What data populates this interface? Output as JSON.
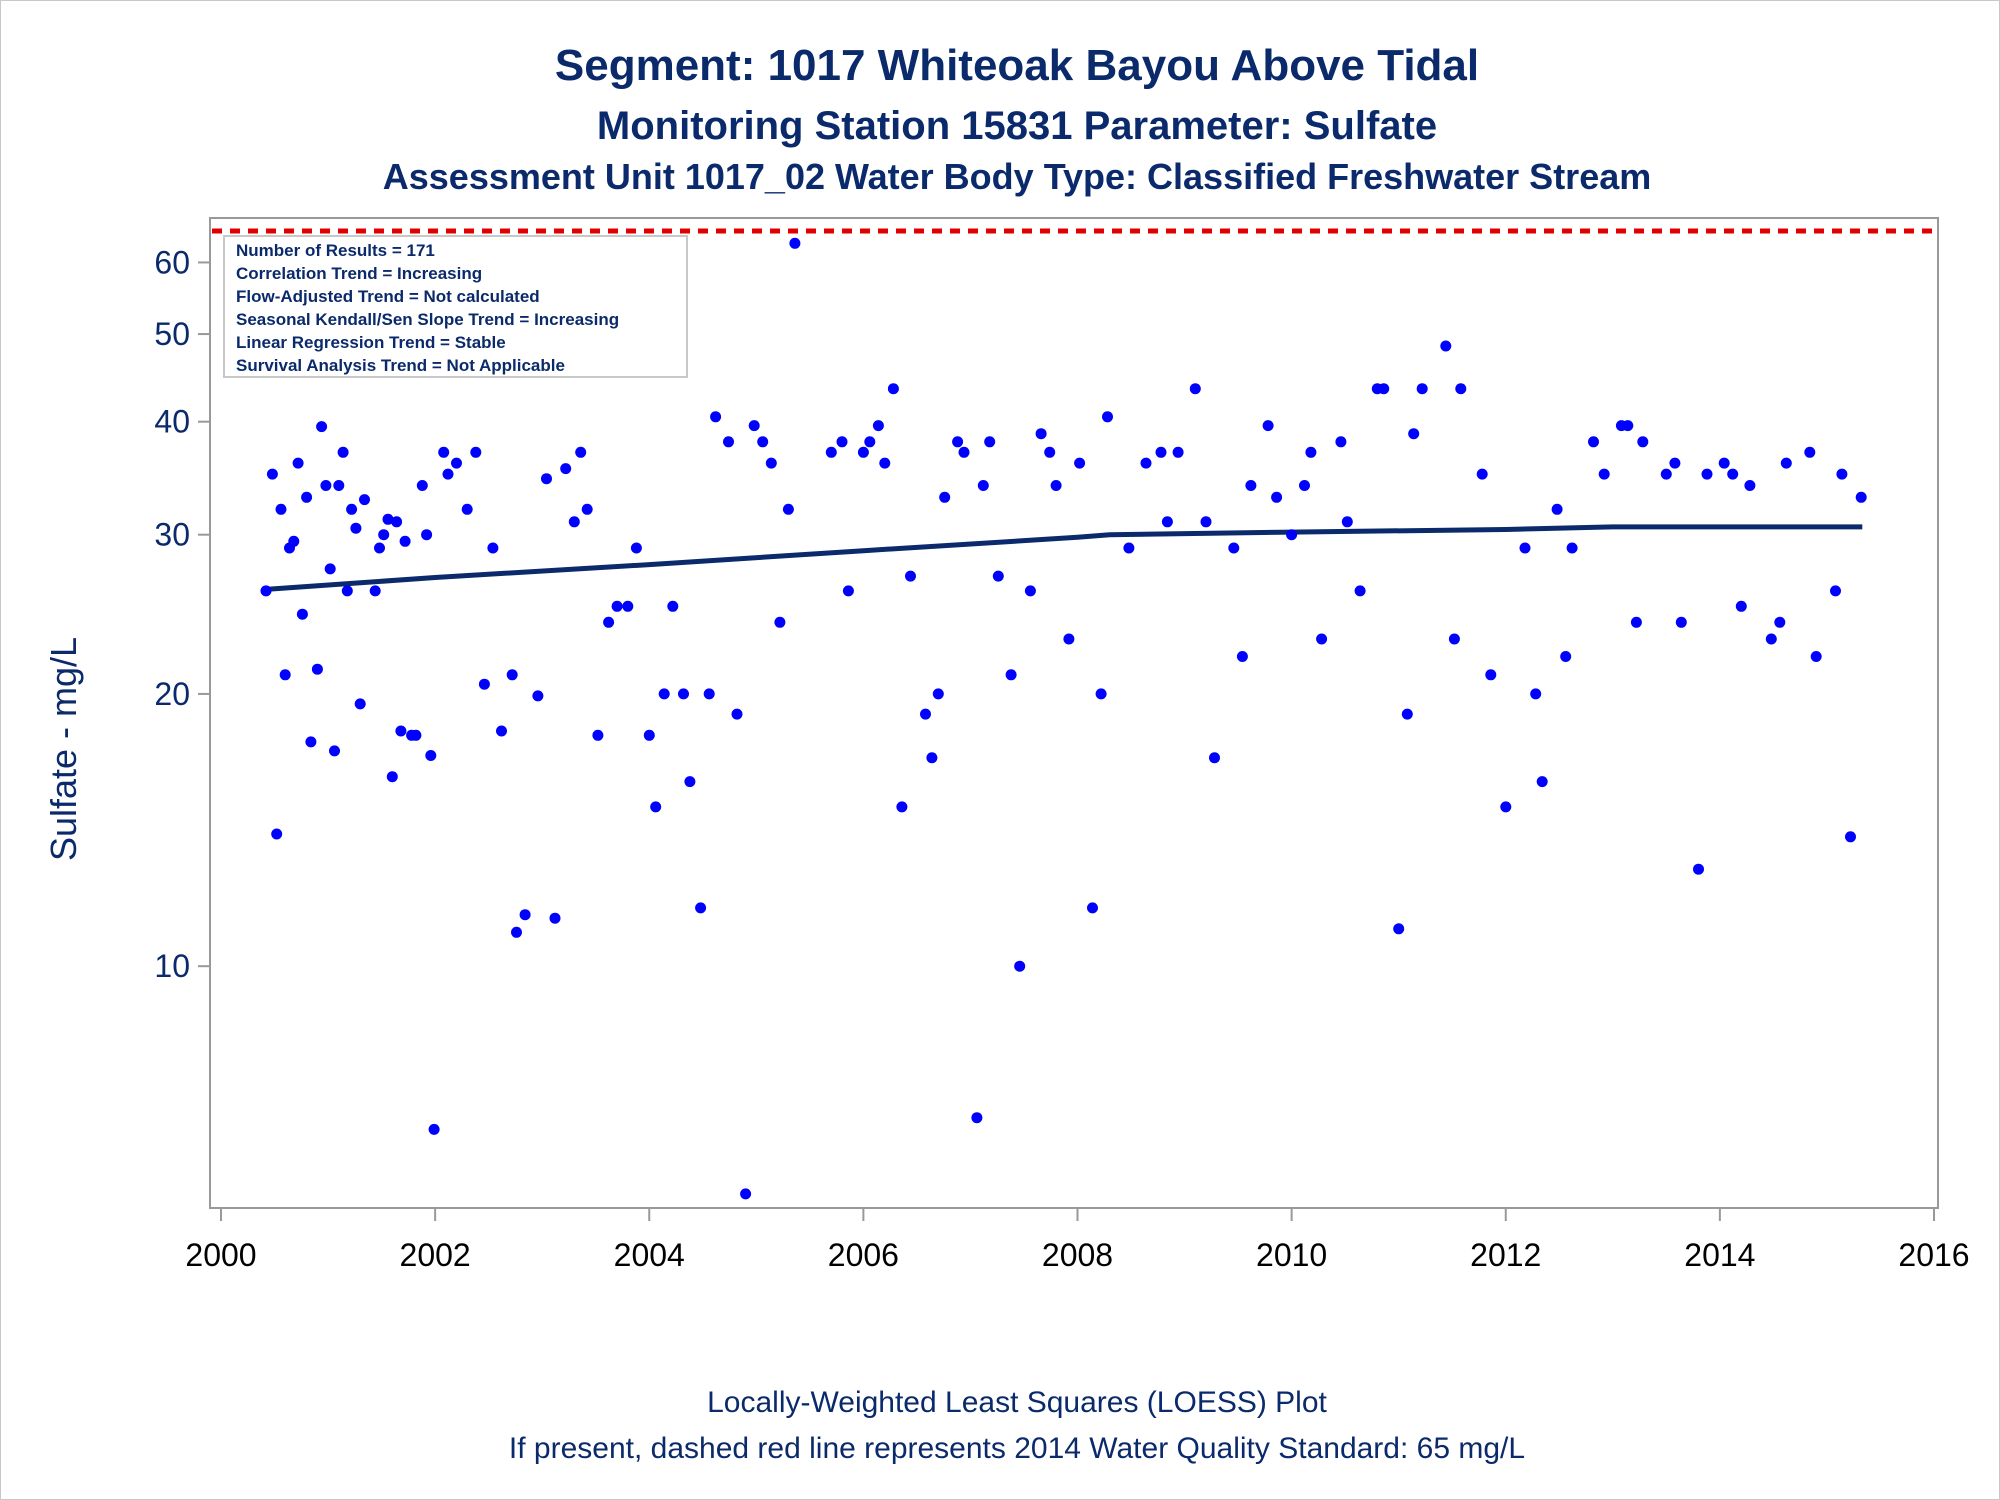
{
  "title": "Segment: 1017  Whiteoak Bayou Above Tidal",
  "subtitle": "Monitoring Station 15831 Parameter: Sulfate",
  "subtitle2": "Assessment Unit 1017_02   Water Body Type: Classified Freshwater Stream",
  "footnote1": "Locally-Weighted Least Squares (LOESS) Plot",
  "footnote2": "If present, dashed red line represents 2014 Water Quality Standard: 65    mg/L",
  "colors": {
    "points": "#0000ff",
    "trend": "#0b2a6b",
    "standard": "#e00000",
    "text": "#0b2a6b",
    "axis": "#999999"
  },
  "chart_data": {
    "type": "scatter",
    "xlabel": "",
    "ylabel": "Sulfate - mg/L",
    "y_scale": "log",
    "xlim": [
      2000,
      2016
    ],
    "ylim": [
      5.5,
      65
    ],
    "x_ticks": [
      "2000",
      "2002",
      "2004",
      "2006",
      "2008",
      "2010",
      "2012",
      "2014",
      "2016"
    ],
    "y_ticks": [
      {
        "value": 10,
        "label": "10"
      },
      {
        "value": 20,
        "label": "20"
      },
      {
        "value": 30,
        "label": "30"
      },
      {
        "value": 40,
        "label": "40"
      },
      {
        "value": 50,
        "label": "50"
      },
      {
        "value": 60,
        "label": "60"
      }
    ],
    "standard": {
      "value": 65,
      "unit": "mg/L",
      "style": "dashed red"
    },
    "inset_lines": [
      "Number of Results = 171",
      "Correlation Trend = Increasing",
      "Flow-Adjusted Trend = Not calculated",
      "Seasonal Kendall/Sen Slope Trend = Increasing",
      "Linear Regression Trend = Stable",
      "Survival Analysis Trend = Not Applicable"
    ],
    "trend_line": {
      "x": [
        2000.42,
        2002,
        2004,
        2006,
        2008,
        2008.3,
        2010,
        2012,
        2013,
        2015.33
      ],
      "y": [
        26.1,
        26.9,
        27.8,
        28.8,
        29.8,
        30.0,
        30.2,
        30.4,
        30.6,
        30.6
      ]
    },
    "points": [
      [
        2000.42,
        26
      ],
      [
        2000.48,
        35
      ],
      [
        2000.52,
        14
      ],
      [
        2000.56,
        32
      ],
      [
        2000.6,
        21
      ],
      [
        2000.64,
        29
      ],
      [
        2000.68,
        29.5
      ],
      [
        2000.72,
        36
      ],
      [
        2000.76,
        24.5
      ],
      [
        2000.8,
        33
      ],
      [
        2000.84,
        17.7
      ],
      [
        2000.9,
        21.3
      ],
      [
        2000.94,
        39.5
      ],
      [
        2000.98,
        34
      ],
      [
        2001.02,
        27.5
      ],
      [
        2001.06,
        17.3
      ],
      [
        2001.1,
        34
      ],
      [
        2001.14,
        37
      ],
      [
        2001.18,
        26
      ],
      [
        2001.22,
        32
      ],
      [
        2001.26,
        30.5
      ],
      [
        2001.3,
        19.5
      ],
      [
        2001.34,
        32.8
      ],
      [
        2001.44,
        26
      ],
      [
        2001.48,
        29
      ],
      [
        2001.52,
        30
      ],
      [
        2001.56,
        31.2
      ],
      [
        2001.6,
        16.2
      ],
      [
        2001.64,
        31
      ],
      [
        2001.68,
        18.2
      ],
      [
        2001.72,
        29.5
      ],
      [
        2001.78,
        18
      ],
      [
        2001.82,
        18
      ],
      [
        2001.88,
        34
      ],
      [
        2001.92,
        30
      ],
      [
        2001.96,
        17.1
      ],
      [
        2001.99,
        6.6
      ],
      [
        2002.08,
        37
      ],
      [
        2002.12,
        35
      ],
      [
        2002.2,
        36
      ],
      [
        2002.3,
        32
      ],
      [
        2002.38,
        37
      ],
      [
        2002.46,
        20.5
      ],
      [
        2002.54,
        29
      ],
      [
        2002.62,
        18.2
      ],
      [
        2002.72,
        21
      ],
      [
        2002.76,
        10.9
      ],
      [
        2002.84,
        11.4
      ],
      [
        2002.96,
        19.9
      ],
      [
        2003.04,
        34.6
      ],
      [
        2003.12,
        11.3
      ],
      [
        2003.22,
        35.5
      ],
      [
        2003.3,
        31
      ],
      [
        2003.36,
        37
      ],
      [
        2003.42,
        32
      ],
      [
        2003.52,
        18
      ],
      [
        2003.62,
        24
      ],
      [
        2003.7,
        25
      ],
      [
        2003.8,
        25
      ],
      [
        2003.88,
        29
      ],
      [
        2004.0,
        18
      ],
      [
        2004.06,
        15
      ],
      [
        2004.14,
        20
      ],
      [
        2004.22,
        25
      ],
      [
        2004.32,
        20
      ],
      [
        2004.38,
        16
      ],
      [
        2004.48,
        11.6
      ],
      [
        2004.56,
        20
      ],
      [
        2004.62,
        40.5
      ],
      [
        2004.74,
        38
      ],
      [
        2004.82,
        19
      ],
      [
        2004.9,
        5.6
      ],
      [
        2004.98,
        39.6
      ],
      [
        2005.06,
        38
      ],
      [
        2005.14,
        36
      ],
      [
        2005.22,
        24
      ],
      [
        2005.3,
        32
      ],
      [
        2005.36,
        63
      ],
      [
        2005.7,
        37
      ],
      [
        2005.8,
        38
      ],
      [
        2005.86,
        26
      ],
      [
        2006.0,
        37
      ],
      [
        2006.06,
        38
      ],
      [
        2006.14,
        39.6
      ],
      [
        2006.2,
        36
      ],
      [
        2006.28,
        43.5
      ],
      [
        2006.36,
        15
      ],
      [
        2006.44,
        27
      ],
      [
        2006.58,
        19
      ],
      [
        2006.64,
        17
      ],
      [
        2006.7,
        20
      ],
      [
        2006.76,
        33
      ],
      [
        2006.88,
        38
      ],
      [
        2006.94,
        37
      ],
      [
        2007.06,
        6.8
      ],
      [
        2007.12,
        34
      ],
      [
        2007.18,
        38
      ],
      [
        2007.26,
        27
      ],
      [
        2007.38,
        21
      ],
      [
        2007.46,
        10
      ],
      [
        2007.56,
        26
      ],
      [
        2007.66,
        38.8
      ],
      [
        2007.74,
        37
      ],
      [
        2007.8,
        34
      ],
      [
        2007.92,
        23
      ],
      [
        2008.02,
        36
      ],
      [
        2008.14,
        11.6
      ],
      [
        2008.22,
        20
      ],
      [
        2008.28,
        40.5
      ],
      [
        2008.48,
        29
      ],
      [
        2008.64,
        36
      ],
      [
        2008.78,
        37
      ],
      [
        2008.84,
        31
      ],
      [
        2008.94,
        37
      ],
      [
        2009.1,
        43.5
      ],
      [
        2009.2,
        31
      ],
      [
        2009.28,
        17
      ],
      [
        2009.46,
        29
      ],
      [
        2009.54,
        22
      ],
      [
        2009.62,
        34
      ],
      [
        2009.78,
        39.6
      ],
      [
        2009.86,
        33
      ],
      [
        2010.0,
        30
      ],
      [
        2010.12,
        34
      ],
      [
        2010.18,
        37
      ],
      [
        2010.28,
        23
      ],
      [
        2010.46,
        38
      ],
      [
        2010.52,
        31
      ],
      [
        2010.64,
        26
      ],
      [
        2010.8,
        43.5
      ],
      [
        2010.86,
        43.5
      ],
      [
        2011.0,
        11
      ],
      [
        2011.08,
        19
      ],
      [
        2011.14,
        38.8
      ],
      [
        2011.22,
        43.5
      ],
      [
        2011.44,
        48.5
      ],
      [
        2011.52,
        23
      ],
      [
        2011.58,
        43.5
      ],
      [
        2011.78,
        35
      ],
      [
        2011.86,
        21
      ],
      [
        2012.0,
        15
      ],
      [
        2012.18,
        29
      ],
      [
        2012.28,
        20
      ],
      [
        2012.34,
        16
      ],
      [
        2012.48,
        32
      ],
      [
        2012.56,
        22
      ],
      [
        2012.62,
        29
      ],
      [
        2012.82,
        38
      ],
      [
        2012.92,
        35
      ],
      [
        2013.08,
        39.6
      ],
      [
        2013.14,
        39.6
      ],
      [
        2013.22,
        24
      ],
      [
        2013.28,
        38
      ],
      [
        2013.5,
        35
      ],
      [
        2013.58,
        36
      ],
      [
        2013.64,
        24
      ],
      [
        2013.8,
        12.8
      ],
      [
        2013.88,
        35
      ],
      [
        2014.04,
        36
      ],
      [
        2014.12,
        35
      ],
      [
        2014.2,
        25
      ],
      [
        2014.28,
        34
      ],
      [
        2014.48,
        23
      ],
      [
        2014.56,
        24
      ],
      [
        2014.62,
        36
      ],
      [
        2014.84,
        37
      ],
      [
        2014.9,
        22
      ],
      [
        2015.08,
        26
      ],
      [
        2015.14,
        35
      ],
      [
        2015.22,
        13.9
      ],
      [
        2015.32,
        33
      ]
    ]
  }
}
